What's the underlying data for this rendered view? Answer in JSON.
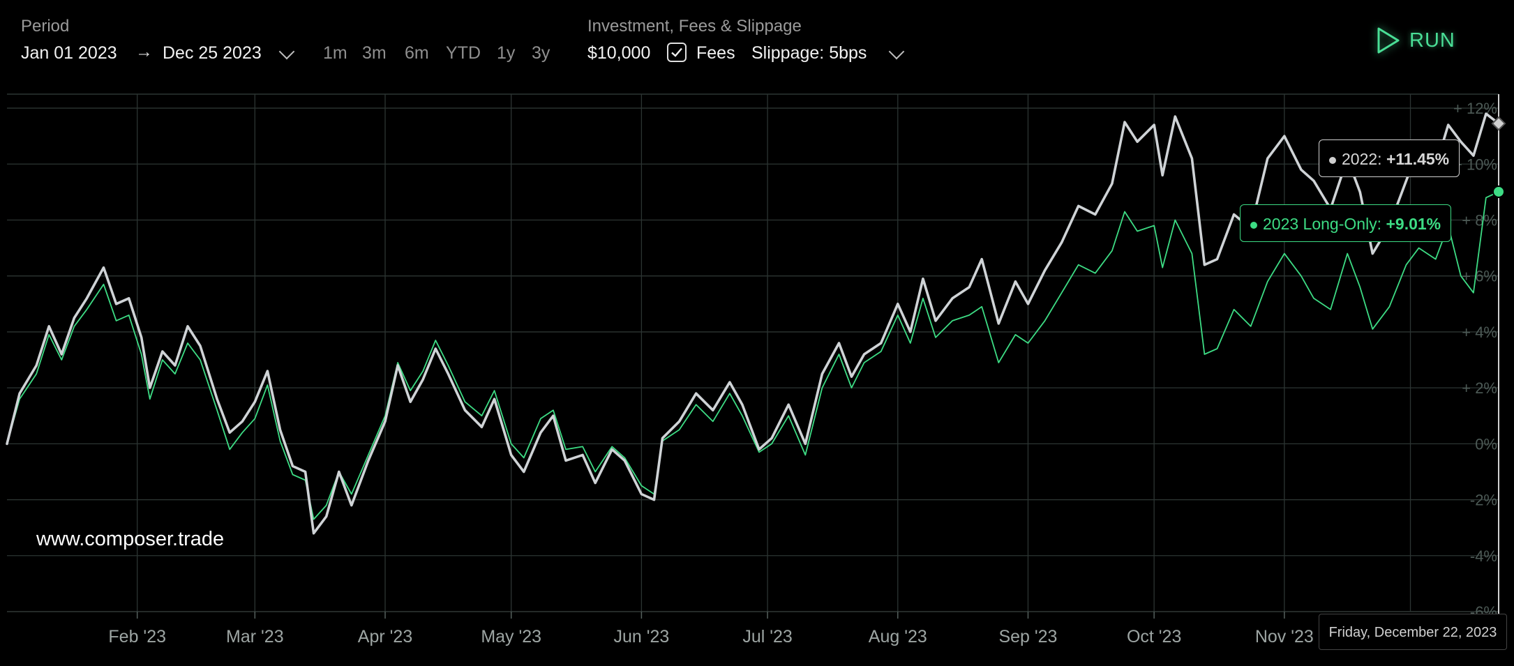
{
  "toolbar": {
    "period_label": "Period",
    "start_date": "Jan 01 2023",
    "end_date": "Dec 25 2023",
    "period_buttons": [
      "1m",
      "3m",
      "6m",
      "YTD",
      "1y",
      "3y"
    ],
    "investment_label": "Investment, Fees & Slippage",
    "investment": "$10,000",
    "fees_label": "Fees",
    "fees_checked": true,
    "slippage": "Slippage: 5bps",
    "run_label": "RUN"
  },
  "colors": {
    "accent": "#4ade96",
    "series_2022": "#cfd3d6",
    "series_2023": "#3ddc84",
    "grid": "#2c3533"
  },
  "tooltips": {
    "s2022_name": "2022:",
    "s2022_value": "+11.45%",
    "s2023_name": "2023 Long-Only:",
    "s2023_value": "+9.01%",
    "date": "Friday, December 22, 2023"
  },
  "watermark": "www.composer.trade",
  "chart_data": {
    "type": "line",
    "x_ticks": [
      "Feb '23",
      "Mar '23",
      "Apr '23",
      "May '23",
      "Jun '23",
      "Jul '23",
      "Aug '23",
      "Sep '23",
      "Oct '23",
      "Nov '23"
    ],
    "y_ticks": [
      "+ 12%",
      "+ 10%",
      "+ 8%",
      "+ 6%",
      "+ 4%",
      "+ 2%",
      "0%",
      "-2%",
      "-4%",
      "-6%"
    ],
    "ylim": [
      -6,
      12.5
    ],
    "x_range": [
      "2023-01-01",
      "2023-12-22"
    ],
    "grid": true,
    "series": [
      {
        "name": "2022",
        "color": "#cfd3d6",
        "points": [
          [
            "2023-01-01",
            0.0
          ],
          [
            "2023-01-04",
            1.8
          ],
          [
            "2023-01-08",
            2.8
          ],
          [
            "2023-01-11",
            4.2
          ],
          [
            "2023-01-14",
            3.2
          ],
          [
            "2023-01-17",
            4.5
          ],
          [
            "2023-01-20",
            5.2
          ],
          [
            "2023-01-24",
            6.3
          ],
          [
            "2023-01-27",
            5.0
          ],
          [
            "2023-01-30",
            5.2
          ],
          [
            "2023-02-02",
            3.8
          ],
          [
            "2023-02-04",
            2.0
          ],
          [
            "2023-02-07",
            3.3
          ],
          [
            "2023-02-10",
            2.8
          ],
          [
            "2023-02-13",
            4.2
          ],
          [
            "2023-02-16",
            3.5
          ],
          [
            "2023-02-20",
            1.6
          ],
          [
            "2023-02-23",
            0.4
          ],
          [
            "2023-02-26",
            0.8
          ],
          [
            "2023-03-01",
            1.5
          ],
          [
            "2023-03-04",
            2.6
          ],
          [
            "2023-03-07",
            0.5
          ],
          [
            "2023-03-10",
            -0.8
          ],
          [
            "2023-03-13",
            -1.0
          ],
          [
            "2023-03-15",
            -3.2
          ],
          [
            "2023-03-18",
            -2.6
          ],
          [
            "2023-03-21",
            -1.0
          ],
          [
            "2023-03-24",
            -2.2
          ],
          [
            "2023-03-28",
            -0.6
          ],
          [
            "2023-04-01",
            0.8
          ],
          [
            "2023-04-04",
            2.8
          ],
          [
            "2023-04-07",
            1.5
          ],
          [
            "2023-04-10",
            2.3
          ],
          [
            "2023-04-13",
            3.4
          ],
          [
            "2023-04-16",
            2.5
          ],
          [
            "2023-04-20",
            1.2
          ],
          [
            "2023-04-24",
            0.6
          ],
          [
            "2023-04-27",
            1.6
          ],
          [
            "2023-05-01",
            -0.4
          ],
          [
            "2023-05-04",
            -1.0
          ],
          [
            "2023-05-08",
            0.4
          ],
          [
            "2023-05-11",
            1.0
          ],
          [
            "2023-05-14",
            -0.6
          ],
          [
            "2023-05-18",
            -0.4
          ],
          [
            "2023-05-21",
            -1.4
          ],
          [
            "2023-05-25",
            -0.2
          ],
          [
            "2023-05-28",
            -0.6
          ],
          [
            "2023-06-01",
            -1.8
          ],
          [
            "2023-06-04",
            -2.0
          ],
          [
            "2023-06-06",
            0.2
          ],
          [
            "2023-06-10",
            0.8
          ],
          [
            "2023-06-14",
            1.8
          ],
          [
            "2023-06-18",
            1.2
          ],
          [
            "2023-06-22",
            2.2
          ],
          [
            "2023-06-25",
            1.4
          ],
          [
            "2023-06-29",
            -0.2
          ],
          [
            "2023-07-02",
            0.2
          ],
          [
            "2023-07-06",
            1.4
          ],
          [
            "2023-07-10",
            0.0
          ],
          [
            "2023-07-14",
            2.5
          ],
          [
            "2023-07-18",
            3.6
          ],
          [
            "2023-07-21",
            2.4
          ],
          [
            "2023-07-24",
            3.2
          ],
          [
            "2023-07-28",
            3.6
          ],
          [
            "2023-08-01",
            5.0
          ],
          [
            "2023-08-04",
            4.0
          ],
          [
            "2023-08-07",
            5.9
          ],
          [
            "2023-08-10",
            4.4
          ],
          [
            "2023-08-14",
            5.2
          ],
          [
            "2023-08-18",
            5.6
          ],
          [
            "2023-08-21",
            6.6
          ],
          [
            "2023-08-25",
            4.3
          ],
          [
            "2023-08-29",
            5.8
          ],
          [
            "2023-09-01",
            5.0
          ],
          [
            "2023-09-05",
            6.2
          ],
          [
            "2023-09-09",
            7.2
          ],
          [
            "2023-09-13",
            8.5
          ],
          [
            "2023-09-17",
            8.2
          ],
          [
            "2023-09-21",
            9.3
          ],
          [
            "2023-09-24",
            11.5
          ],
          [
            "2023-09-27",
            10.8
          ],
          [
            "2023-10-01",
            11.4
          ],
          [
            "2023-10-03",
            9.6
          ],
          [
            "2023-10-06",
            11.7
          ],
          [
            "2023-10-10",
            10.2
          ],
          [
            "2023-10-13",
            6.4
          ],
          [
            "2023-10-16",
            6.6
          ],
          [
            "2023-10-20",
            8.2
          ],
          [
            "2023-10-24",
            7.7
          ],
          [
            "2023-10-28",
            10.2
          ],
          [
            "2023-11-01",
            11.0
          ],
          [
            "2023-11-05",
            9.8
          ],
          [
            "2023-11-08",
            9.4
          ],
          [
            "2023-11-12",
            8.4
          ],
          [
            "2023-11-16",
            10.2
          ],
          [
            "2023-11-19",
            9.0
          ],
          [
            "2023-11-22",
            6.8
          ],
          [
            "2023-11-26",
            7.8
          ],
          [
            "2023-11-30",
            9.4
          ],
          [
            "2023-12-03",
            10.6
          ],
          [
            "2023-12-07",
            9.9
          ],
          [
            "2023-12-10",
            11.4
          ],
          [
            "2023-12-13",
            10.8
          ],
          [
            "2023-12-16",
            10.3
          ],
          [
            "2023-12-19",
            11.8
          ],
          [
            "2023-12-22",
            11.45
          ]
        ]
      },
      {
        "name": "2023 Long-Only",
        "color": "#3ddc84",
        "points": [
          [
            "2023-01-01",
            0.0
          ],
          [
            "2023-01-04",
            1.6
          ],
          [
            "2023-01-08",
            2.5
          ],
          [
            "2023-01-11",
            3.9
          ],
          [
            "2023-01-14",
            3.0
          ],
          [
            "2023-01-17",
            4.2
          ],
          [
            "2023-01-20",
            4.8
          ],
          [
            "2023-01-24",
            5.7
          ],
          [
            "2023-01-27",
            4.4
          ],
          [
            "2023-01-30",
            4.6
          ],
          [
            "2023-02-02",
            3.2
          ],
          [
            "2023-02-04",
            1.6
          ],
          [
            "2023-02-07",
            3.0
          ],
          [
            "2023-02-10",
            2.5
          ],
          [
            "2023-02-13",
            3.6
          ],
          [
            "2023-02-16",
            3.0
          ],
          [
            "2023-02-20",
            1.2
          ],
          [
            "2023-02-23",
            -0.2
          ],
          [
            "2023-02-26",
            0.4
          ],
          [
            "2023-03-01",
            0.9
          ],
          [
            "2023-03-04",
            2.1
          ],
          [
            "2023-03-07",
            0.1
          ],
          [
            "2023-03-10",
            -1.1
          ],
          [
            "2023-03-13",
            -1.3
          ],
          [
            "2023-03-15",
            -2.7
          ],
          [
            "2023-03-18",
            -2.2
          ],
          [
            "2023-03-21",
            -1.0
          ],
          [
            "2023-03-24",
            -1.8
          ],
          [
            "2023-03-28",
            -0.4
          ],
          [
            "2023-04-01",
            1.0
          ],
          [
            "2023-04-04",
            2.9
          ],
          [
            "2023-04-07",
            1.9
          ],
          [
            "2023-04-10",
            2.6
          ],
          [
            "2023-04-13",
            3.7
          ],
          [
            "2023-04-16",
            2.8
          ],
          [
            "2023-04-20",
            1.5
          ],
          [
            "2023-04-24",
            1.0
          ],
          [
            "2023-04-27",
            1.9
          ],
          [
            "2023-05-01",
            0.0
          ],
          [
            "2023-05-04",
            -0.5
          ],
          [
            "2023-05-08",
            0.9
          ],
          [
            "2023-05-11",
            1.2
          ],
          [
            "2023-05-14",
            -0.2
          ],
          [
            "2023-05-18",
            -0.1
          ],
          [
            "2023-05-21",
            -1.0
          ],
          [
            "2023-05-25",
            -0.1
          ],
          [
            "2023-05-28",
            -0.5
          ],
          [
            "2023-06-01",
            -1.5
          ],
          [
            "2023-06-04",
            -1.8
          ],
          [
            "2023-06-06",
            0.1
          ],
          [
            "2023-06-10",
            0.5
          ],
          [
            "2023-06-14",
            1.4
          ],
          [
            "2023-06-18",
            0.8
          ],
          [
            "2023-06-22",
            1.8
          ],
          [
            "2023-06-25",
            1.0
          ],
          [
            "2023-06-29",
            -0.3
          ],
          [
            "2023-07-02",
            0.0
          ],
          [
            "2023-07-06",
            1.0
          ],
          [
            "2023-07-10",
            -0.4
          ],
          [
            "2023-07-14",
            2.0
          ],
          [
            "2023-07-18",
            3.2
          ],
          [
            "2023-07-21",
            2.0
          ],
          [
            "2023-07-24",
            2.9
          ],
          [
            "2023-07-28",
            3.3
          ],
          [
            "2023-08-01",
            4.6
          ],
          [
            "2023-08-04",
            3.6
          ],
          [
            "2023-08-07",
            5.2
          ],
          [
            "2023-08-10",
            3.8
          ],
          [
            "2023-08-14",
            4.4
          ],
          [
            "2023-08-18",
            4.6
          ],
          [
            "2023-08-21",
            4.9
          ],
          [
            "2023-08-25",
            2.9
          ],
          [
            "2023-08-29",
            3.9
          ],
          [
            "2023-09-01",
            3.6
          ],
          [
            "2023-09-05",
            4.4
          ],
          [
            "2023-09-09",
            5.4
          ],
          [
            "2023-09-13",
            6.4
          ],
          [
            "2023-09-17",
            6.1
          ],
          [
            "2023-09-21",
            6.9
          ],
          [
            "2023-09-24",
            8.3
          ],
          [
            "2023-09-27",
            7.6
          ],
          [
            "2023-10-01",
            7.8
          ],
          [
            "2023-10-03",
            6.3
          ],
          [
            "2023-10-06",
            8.0
          ],
          [
            "2023-10-10",
            6.8
          ],
          [
            "2023-10-13",
            3.2
          ],
          [
            "2023-10-16",
            3.4
          ],
          [
            "2023-10-20",
            4.8
          ],
          [
            "2023-10-24",
            4.2
          ],
          [
            "2023-10-28",
            5.8
          ],
          [
            "2023-11-01",
            6.8
          ],
          [
            "2023-11-05",
            6.0
          ],
          [
            "2023-11-08",
            5.2
          ],
          [
            "2023-11-12",
            4.8
          ],
          [
            "2023-11-16",
            6.8
          ],
          [
            "2023-11-19",
            5.6
          ],
          [
            "2023-11-22",
            4.1
          ],
          [
            "2023-11-26",
            4.9
          ],
          [
            "2023-11-30",
            6.4
          ],
          [
            "2023-12-03",
            7.0
          ],
          [
            "2023-12-07",
            6.6
          ],
          [
            "2023-12-10",
            7.8
          ],
          [
            "2023-12-13",
            6.0
          ],
          [
            "2023-12-16",
            5.4
          ],
          [
            "2023-12-19",
            8.8
          ],
          [
            "2023-12-22",
            9.01
          ]
        ]
      }
    ]
  }
}
